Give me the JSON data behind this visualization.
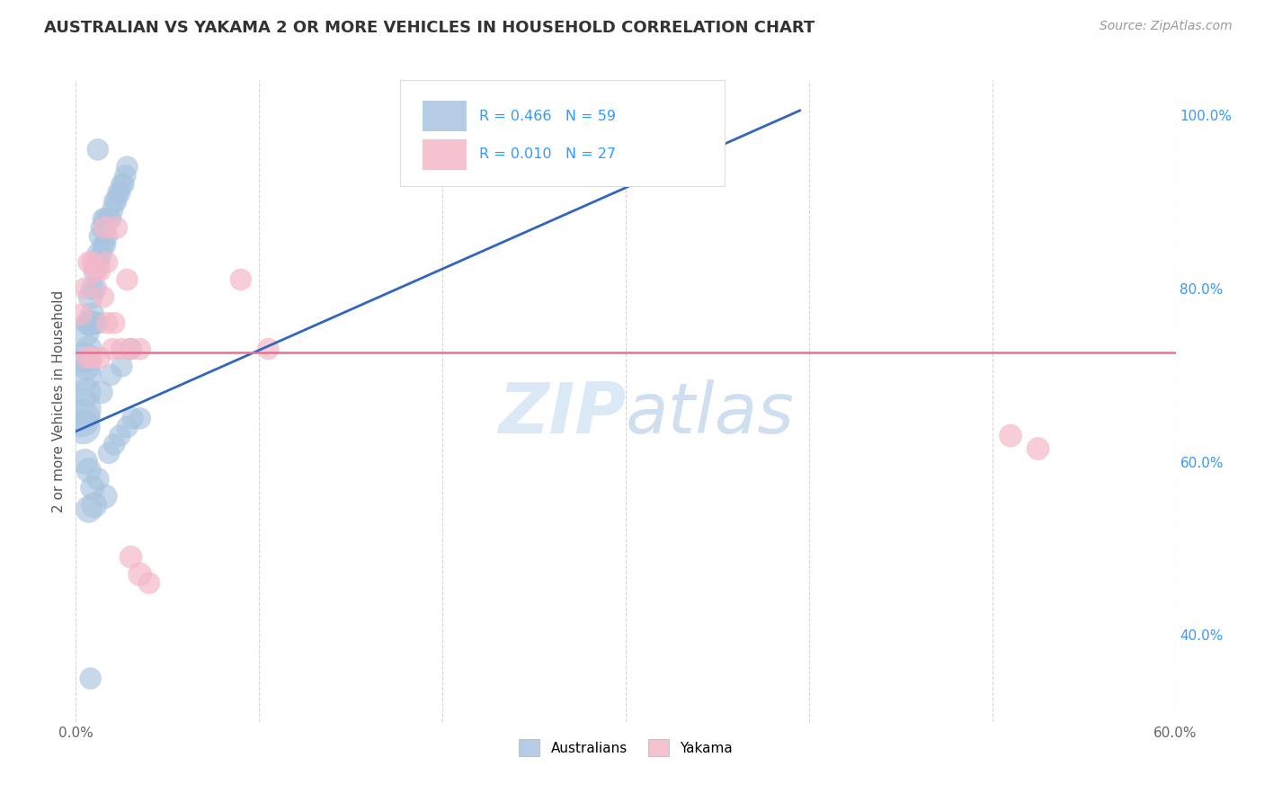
{
  "title": "AUSTRALIAN VS YAKAMA 2 OR MORE VEHICLES IN HOUSEHOLD CORRELATION CHART",
  "source": "Source: ZipAtlas.com",
  "ylabel": "2 or more Vehicles in Household",
  "xmin": 0.0,
  "xmax": 0.6,
  "ymin": 0.3,
  "ymax": 1.04,
  "xticks": [
    0.0,
    0.1,
    0.2,
    0.3,
    0.4,
    0.5,
    0.6
  ],
  "xticklabels": [
    "0.0%",
    "",
    "",
    "",
    "",
    "",
    "60.0%"
  ],
  "yticks_right": [
    0.4,
    0.6,
    0.8,
    1.0
  ],
  "ytick_labels_right": [
    "40.0%",
    "60.0%",
    "80.0%",
    "100.0%"
  ],
  "color_australian": "#a8c4e0",
  "color_yakama": "#f4b8c8",
  "color_line_australian": "#3366bb",
  "color_line_yakama": "#e87090",
  "watermark_zip": "ZIP",
  "watermark_atlas": "atlas",
  "australians_x": [
    0.002,
    0.003,
    0.004,
    0.005,
    0.005,
    0.005,
    0.006,
    0.006,
    0.007,
    0.007,
    0.008,
    0.008,
    0.009,
    0.009,
    0.01,
    0.01,
    0.011,
    0.011,
    0.012,
    0.012,
    0.013,
    0.013,
    0.014,
    0.014,
    0.015,
    0.015,
    0.016,
    0.016,
    0.017,
    0.018,
    0.019,
    0.02,
    0.021,
    0.022,
    0.023,
    0.024,
    0.025,
    0.026,
    0.027,
    0.028,
    0.005,
    0.007,
    0.009,
    0.012,
    0.018,
    0.021,
    0.024,
    0.028,
    0.031,
    0.035,
    0.014,
    0.019,
    0.025,
    0.03,
    0.007,
    0.01,
    0.016,
    0.008,
    0.012
  ],
  "australians_y": [
    0.66,
    0.65,
    0.64,
    0.7,
    0.72,
    0.75,
    0.68,
    0.71,
    0.73,
    0.76,
    0.76,
    0.79,
    0.77,
    0.8,
    0.76,
    0.82,
    0.8,
    0.83,
    0.76,
    0.84,
    0.83,
    0.86,
    0.84,
    0.87,
    0.85,
    0.88,
    0.85,
    0.88,
    0.86,
    0.88,
    0.88,
    0.89,
    0.9,
    0.9,
    0.91,
    0.91,
    0.92,
    0.92,
    0.93,
    0.94,
    0.6,
    0.59,
    0.57,
    0.58,
    0.61,
    0.62,
    0.63,
    0.64,
    0.65,
    0.65,
    0.68,
    0.7,
    0.71,
    0.73,
    0.545,
    0.55,
    0.56,
    0.35,
    0.96
  ],
  "australians_size": [
    80,
    60,
    50,
    45,
    40,
    38,
    35,
    32,
    30,
    28,
    28,
    26,
    24,
    22,
    22,
    20,
    20,
    20,
    20,
    20,
    20,
    20,
    20,
    20,
    20,
    20,
    20,
    20,
    20,
    20,
    20,
    20,
    20,
    20,
    20,
    20,
    20,
    20,
    20,
    20,
    28,
    26,
    24,
    22,
    20,
    20,
    20,
    20,
    20,
    20,
    22,
    20,
    20,
    20,
    30,
    28,
    25,
    20,
    20
  ],
  "yakama_x": [
    0.003,
    0.005,
    0.007,
    0.009,
    0.011,
    0.013,
    0.015,
    0.017,
    0.006,
    0.009,
    0.013,
    0.017,
    0.021,
    0.016,
    0.022,
    0.028,
    0.02,
    0.025,
    0.03,
    0.035,
    0.09,
    0.105,
    0.51,
    0.525,
    0.03,
    0.035,
    0.04
  ],
  "yakama_y": [
    0.77,
    0.8,
    0.83,
    0.83,
    0.82,
    0.82,
    0.79,
    0.83,
    0.72,
    0.72,
    0.72,
    0.76,
    0.76,
    0.87,
    0.87,
    0.81,
    0.73,
    0.73,
    0.73,
    0.73,
    0.81,
    0.73,
    0.63,
    0.615,
    0.49,
    0.47,
    0.46
  ],
  "yakama_size": [
    20,
    20,
    20,
    20,
    20,
    20,
    20,
    20,
    20,
    20,
    20,
    20,
    20,
    22,
    22,
    20,
    20,
    20,
    20,
    20,
    20,
    20,
    22,
    22,
    22,
    24,
    20
  ],
  "blue_line_x": [
    0.0,
    0.395
  ],
  "blue_line_y": [
    0.635,
    1.005
  ],
  "pink_line_y": 0.726,
  "grid_color": "#cccccc",
  "background": "#ffffff",
  "title_fontsize": 13,
  "axis_fontsize": 11,
  "source_fontsize": 10
}
